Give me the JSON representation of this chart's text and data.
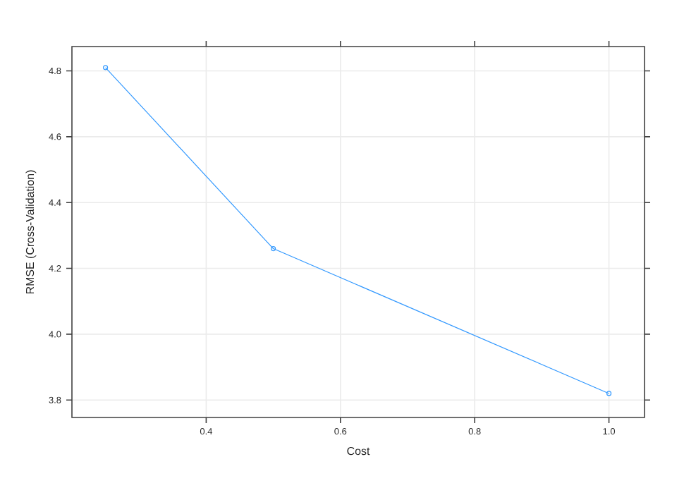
{
  "chart_data": {
    "type": "line",
    "xlabel": "Cost",
    "ylabel": "RMSE (Cross-Validation)",
    "x": [
      0.25,
      0.5,
      1.0
    ],
    "series": [
      {
        "color": "#3399ff",
        "values": [
          4.81,
          4.26,
          3.82
        ]
      }
    ],
    "xlim": [
      0.2,
      1.053
    ],
    "ylim": [
      3.747,
      4.874
    ],
    "xticks": [
      0.4,
      0.6,
      0.8,
      {
        "value": 1,
        "label": "1.0"
      }
    ],
    "yticks": [
      3.8,
      {
        "value": 4,
        "label": "4.0"
      },
      4.2,
      4.4,
      4.6,
      4.8
    ],
    "grid": true,
    "marker": "circle",
    "line_style": "solid"
  }
}
